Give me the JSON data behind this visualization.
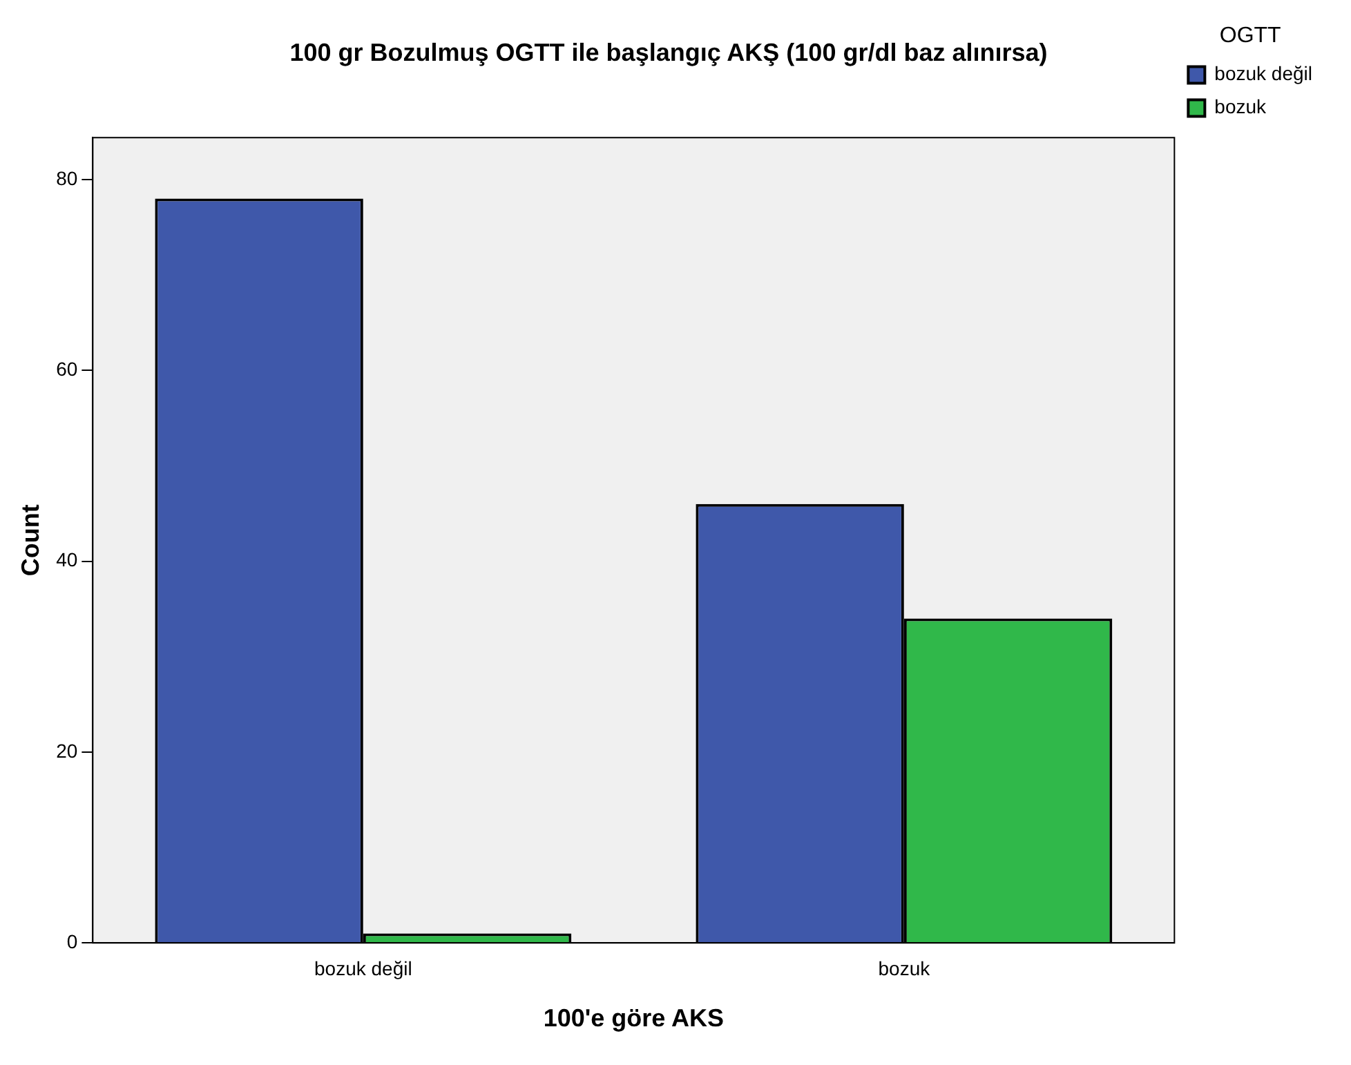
{
  "chart_data": {
    "type": "bar",
    "title": "100 gr Bozulmuş OGTT ile başlangıç AKŞ (100 gr/dl baz alınırsa)",
    "xlabel": "100'e göre AKS",
    "ylabel": "Count",
    "legend_title": "OGTT",
    "categories": [
      "bozuk değil",
      "bozuk"
    ],
    "series": [
      {
        "name": "bozuk değil",
        "color": "#3f58aa",
        "values": [
          78,
          46
        ]
      },
      {
        "name": "bozuk",
        "color": "#30b84a",
        "values": [
          1,
          34
        ]
      }
    ],
    "ylim": [
      0,
      84.4
    ],
    "yticks": [
      0,
      20,
      40,
      60,
      80
    ],
    "grid": false,
    "legend": "top right"
  }
}
